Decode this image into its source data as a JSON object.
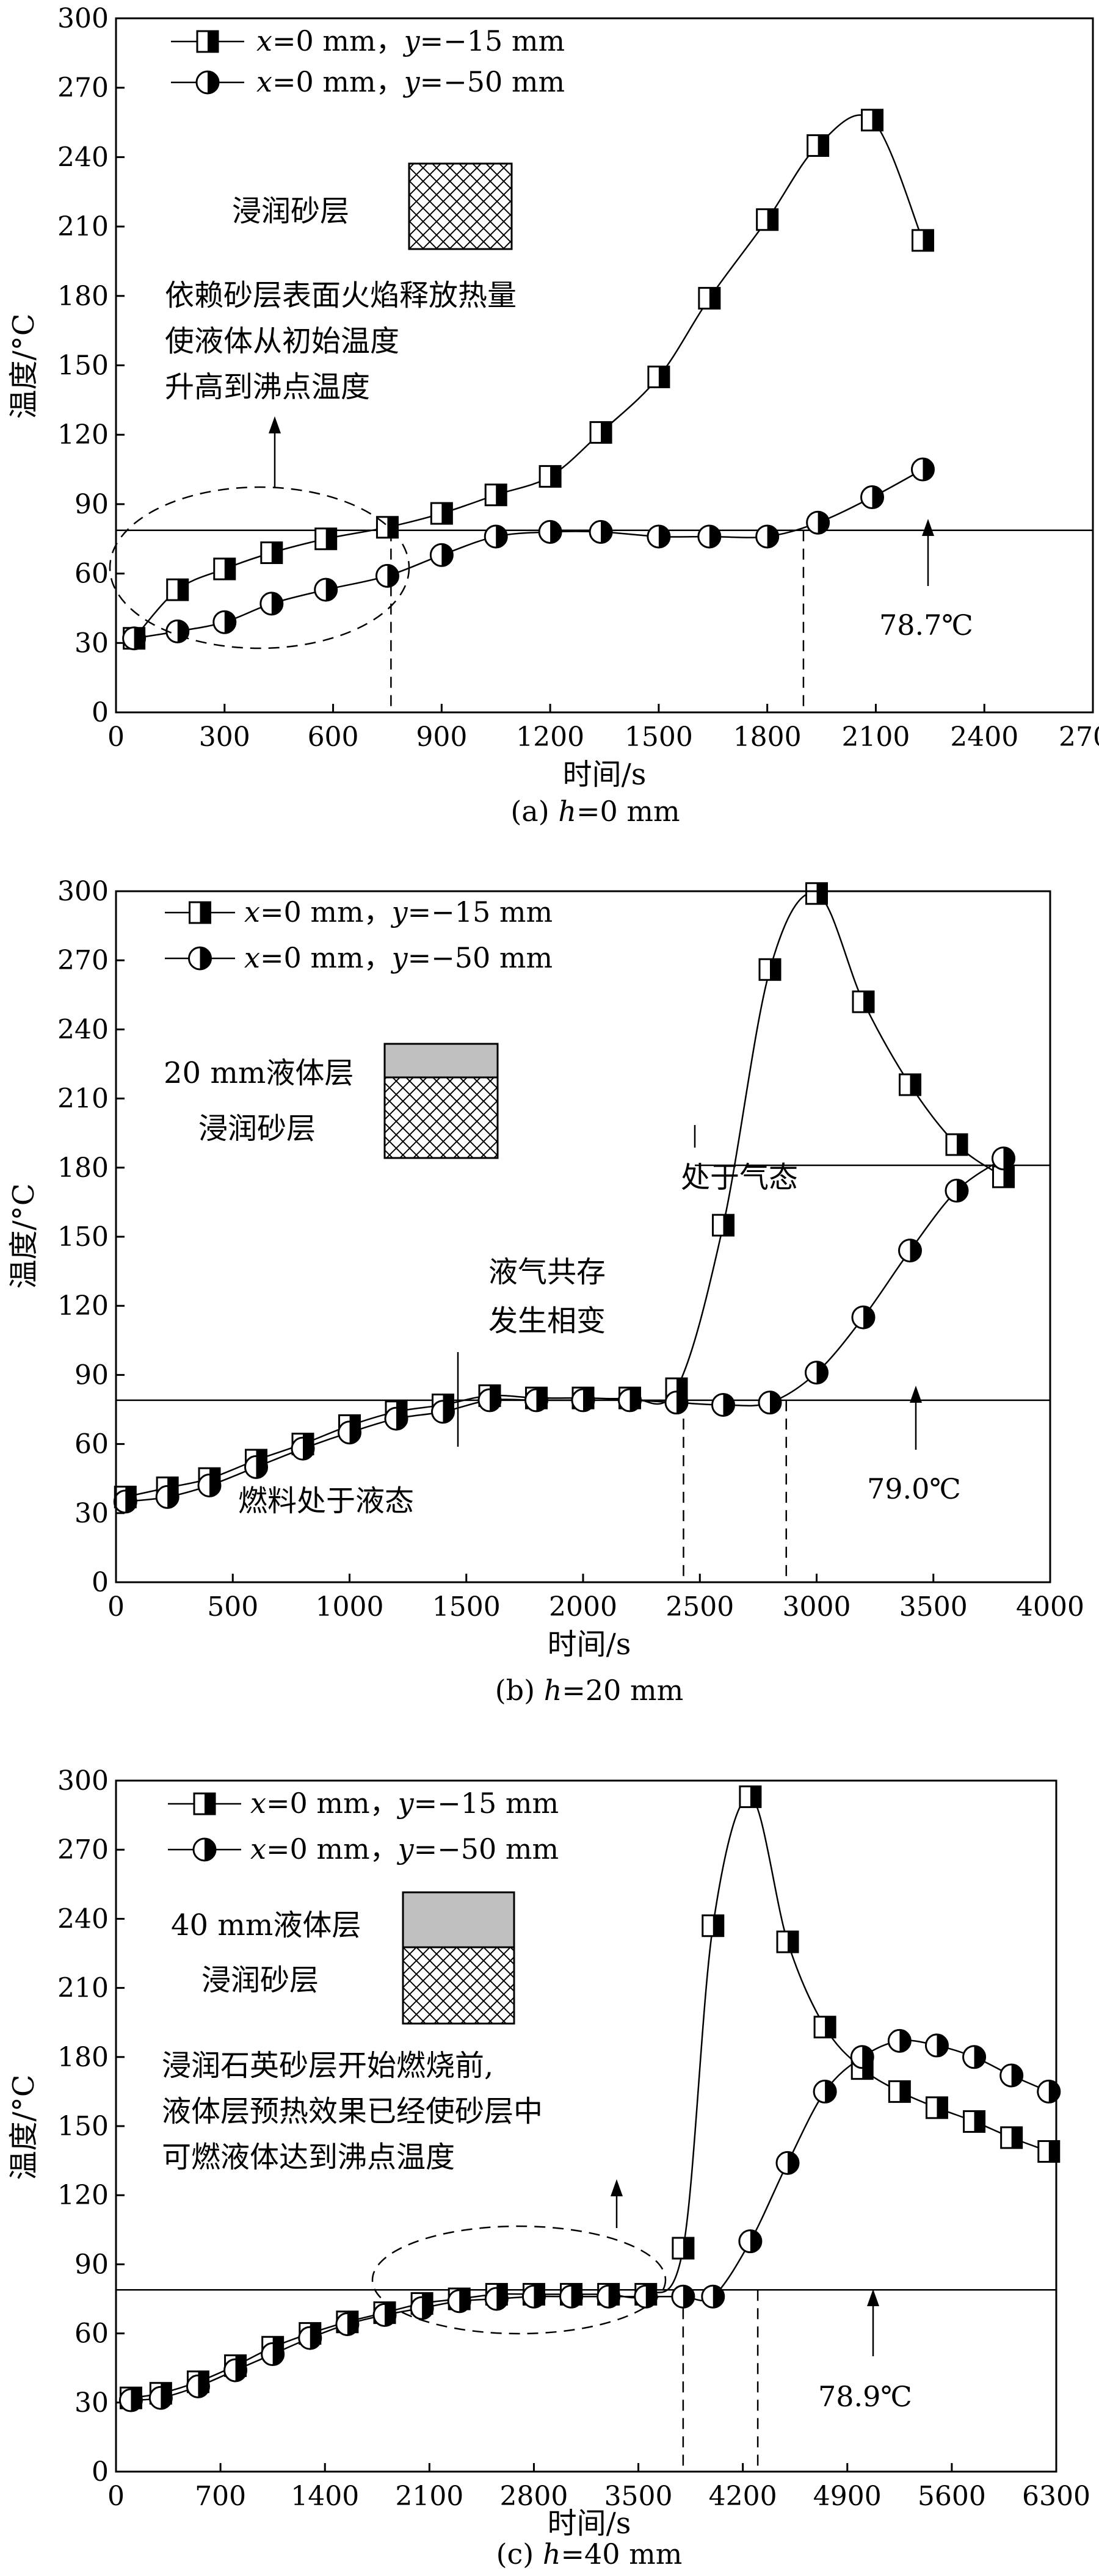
{
  "chart_data": [
    {
      "type": "line",
      "panel_label": "(a) h=0 mm",
      "panel_prefix": "(a) ",
      "panel_var": "h",
      "panel_value": "=0 mm",
      "xlabel": "时间/s",
      "ylabel": "温度/°C",
      "xlim": [
        0,
        2700
      ],
      "ylim": [
        0,
        300
      ],
      "xticks": [
        0,
        300,
        600,
        900,
        1200,
        1500,
        1800,
        2100,
        2400,
        2700
      ],
      "yticks": [
        0,
        30,
        60,
        90,
        120,
        150,
        180,
        210,
        240,
        270,
        300
      ],
      "series": [
        {
          "name": "x=0 mm，y=−15 mm",
          "marker": "half-square",
          "x": [
            50,
            170,
            300,
            430,
            580,
            750,
            900,
            1050,
            1200,
            1340,
            1500,
            1640,
            1800,
            1940,
            2090,
            2230
          ],
          "values": [
            32,
            53,
            62,
            69,
            75,
            80,
            86,
            94,
            102,
            121,
            145,
            179,
            213,
            245,
            256,
            204
          ]
        },
        {
          "name": "x=0 mm，y=−50 mm",
          "marker": "half-circle",
          "x": [
            50,
            170,
            300,
            430,
            580,
            750,
            900,
            1050,
            1200,
            1340,
            1500,
            1640,
            1800,
            1940,
            2090,
            2230
          ],
          "values": [
            32,
            35,
            39,
            47,
            53,
            59,
            68,
            76,
            78,
            78,
            76,
            76,
            76,
            82,
            93,
            105
          ]
        }
      ],
      "legend": [
        {
          "pre": "x",
          "mid": "=0 mm，",
          "var2": "y",
          "post": "=−15 mm"
        },
        {
          "pre": "x",
          "mid": "=0 mm，",
          "var2": "y",
          "post": "=−50 mm"
        }
      ],
      "reference_line": {
        "y": 78.7,
        "label": "78.7℃"
      },
      "dashed_x": [
        760,
        1900
      ],
      "annotations": [
        "浸润砂层",
        "依赖砂层表面火焰释放热量",
        "使液体从初始温度",
        "升高到沸点温度"
      ]
    },
    {
      "type": "line",
      "panel_label": "(b) h=20 mm",
      "panel_prefix": "(b) ",
      "panel_var": "h",
      "panel_value": "=20 mm",
      "xlabel": "时间/s",
      "ylabel": "温度/°C",
      "xlim": [
        0,
        4000
      ],
      "ylim": [
        0,
        300
      ],
      "xticks": [
        0,
        500,
        1000,
        1500,
        2000,
        2500,
        3000,
        3500,
        4000
      ],
      "yticks": [
        0,
        30,
        60,
        90,
        120,
        150,
        180,
        210,
        240,
        270,
        300
      ],
      "series": [
        {
          "name": "x=0 mm，y=−15 mm",
          "marker": "half-square",
          "x": [
            40,
            220,
            400,
            600,
            800,
            1000,
            1200,
            1400,
            1600,
            1800,
            2000,
            2200,
            2400,
            2600,
            2800,
            3000,
            3200,
            3400,
            3600,
            3800
          ],
          "values": [
            37,
            41,
            45,
            53,
            60,
            68,
            74,
            77,
            81,
            80,
            80,
            80,
            84,
            155,
            266,
            299,
            252,
            216,
            190,
            176
          ]
        },
        {
          "name": "x=0 mm，y=−50 mm",
          "marker": "half-circle",
          "x": [
            40,
            220,
            400,
            600,
            800,
            1000,
            1200,
            1400,
            1600,
            1800,
            2000,
            2200,
            2400,
            2600,
            2800,
            3000,
            3200,
            3400,
            3600,
            3800
          ],
          "values": [
            35,
            37,
            42,
            50,
            58,
            65,
            71,
            74,
            79,
            79,
            79,
            79,
            78,
            77,
            78,
            91,
            115,
            144,
            170,
            184
          ]
        }
      ],
      "legend": [
        {
          "pre": "x",
          "mid": "=0 mm，",
          "var2": "y",
          "post": "=−15 mm"
        },
        {
          "pre": "x",
          "mid": "=0 mm，",
          "var2": "y",
          "post": "=−50 mm"
        }
      ],
      "reference_line": {
        "y": 79.0,
        "label": "79.0℃"
      },
      "secondary_line": {
        "y": 181,
        "label": "处于气态"
      },
      "dashed_x": [
        2430,
        2870
      ],
      "annotations": [
        "20 mm液体层",
        "浸润砂层",
        "液气共存",
        "发生相变",
        "燃料处于液态",
        "处于气态"
      ]
    },
    {
      "type": "line",
      "panel_label": "(c) h=40 mm",
      "panel_prefix": "(c) ",
      "panel_var": "h",
      "panel_value": "=40 mm",
      "xlabel": "时间/s",
      "ylabel": "温度/°C",
      "xlim": [
        0,
        6300
      ],
      "ylim": [
        0,
        300
      ],
      "xticks": [
        0,
        700,
        1400,
        2100,
        2800,
        3500,
        4200,
        4900,
        5600,
        6300
      ],
      "yticks": [
        0,
        30,
        60,
        90,
        120,
        150,
        180,
        210,
        240,
        270,
        300
      ],
      "series": [
        {
          "name": "x=0 mm，y=−15 mm",
          "marker": "half-square",
          "x": [
            100,
            300,
            550,
            800,
            1050,
            1300,
            1550,
            1800,
            2050,
            2300,
            2550,
            2800,
            3050,
            3300,
            3550,
            3800,
            4000,
            4250,
            4500,
            4750,
            5000,
            5250,
            5500,
            5750,
            6000,
            6250
          ],
          "values": [
            32,
            34,
            39,
            46,
            54,
            60,
            65,
            69,
            73,
            75,
            77,
            77,
            77,
            77,
            77,
            97,
            237,
            293,
            230,
            193,
            175,
            165,
            158,
            152,
            145,
            139
          ]
        },
        {
          "name": "x=0 mm，y=−50 mm",
          "marker": "half-circle",
          "x": [
            100,
            300,
            550,
            800,
            1050,
            1300,
            1550,
            1800,
            2050,
            2300,
            2550,
            2800,
            3050,
            3300,
            3550,
            3800,
            4000,
            4250,
            4500,
            4750,
            5000,
            5250,
            5500,
            5750,
            6000,
            6250
          ],
          "values": [
            31,
            32,
            37,
            44,
            51,
            58,
            64,
            68,
            71,
            74,
            75,
            76,
            76,
            76,
            76,
            76,
            76,
            100,
            134,
            165,
            180,
            187,
            185,
            180,
            172,
            165
          ]
        }
      ],
      "legend": [
        {
          "pre": "x",
          "mid": "=0 mm，",
          "var2": "y",
          "post": "=−15 mm"
        },
        {
          "pre": "x",
          "mid": "=0 mm，",
          "var2": "y",
          "post": "=−50 mm"
        }
      ],
      "reference_line": {
        "y": 78.9,
        "label": "78.9℃"
      },
      "dashed_x": [
        3800,
        4300
      ],
      "annotations": [
        "40 mm液体层",
        "浸润砂层",
        "浸润石英砂层开始燃烧前,",
        "液体层预热效果已经使砂层中",
        "可燃液体达到沸点温度"
      ]
    }
  ],
  "colors": {
    "ink": "#000000",
    "liquid_fill": "#c0c0c0",
    "background": "#ffffff"
  }
}
